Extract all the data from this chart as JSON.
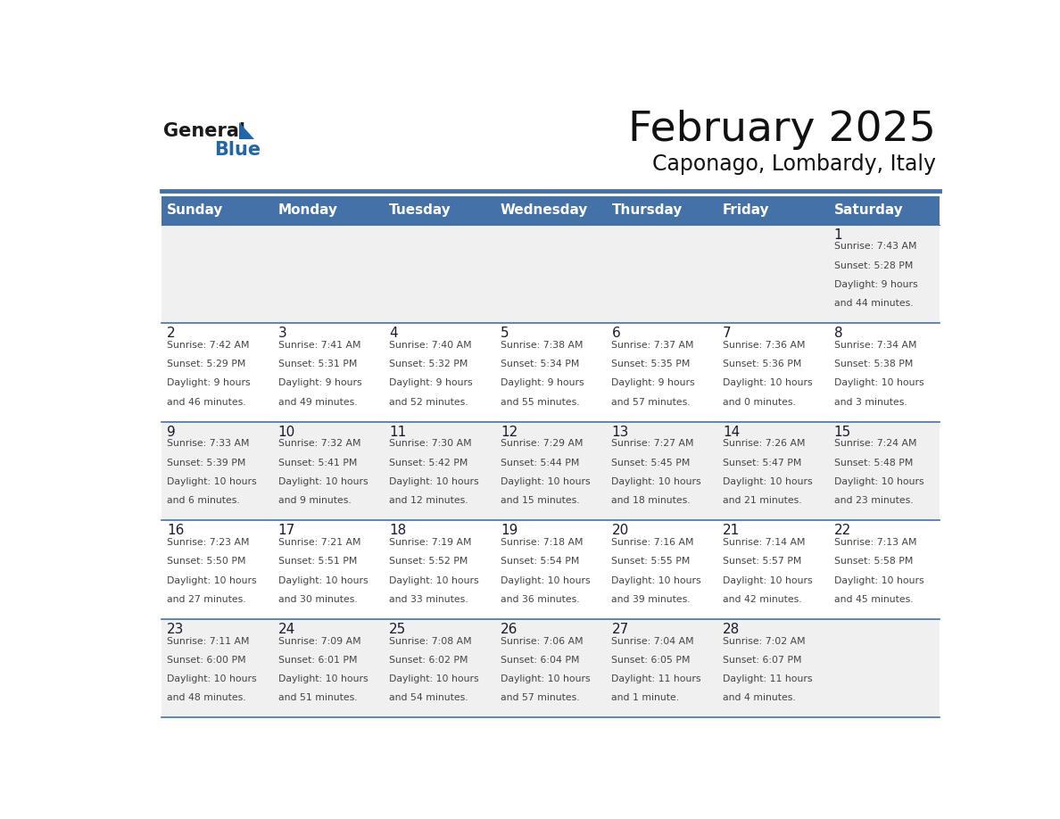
{
  "title": "February 2025",
  "subtitle": "Caponago, Lombardy, Italy",
  "header_bg": "#4472a8",
  "header_text_color": "#ffffff",
  "days_of_week": [
    "Sunday",
    "Monday",
    "Tuesday",
    "Wednesday",
    "Thursday",
    "Friday",
    "Saturday"
  ],
  "row_bg_even": "#f0f0f0",
  "row_bg_odd": "#ffffff",
  "cell_text_color": "#444444",
  "day_num_color": "#1a1a2e",
  "line_color": "#4472a8",
  "general_blue_text": "#2266aa",
  "logo_text_color": "#1a1a1a",
  "weeks": [
    [
      null,
      null,
      null,
      null,
      null,
      null,
      1
    ],
    [
      2,
      3,
      4,
      5,
      6,
      7,
      8
    ],
    [
      9,
      10,
      11,
      12,
      13,
      14,
      15
    ],
    [
      16,
      17,
      18,
      19,
      20,
      21,
      22
    ],
    [
      23,
      24,
      25,
      26,
      27,
      28,
      null
    ]
  ],
  "cell_data": {
    "1": {
      "sunrise": "7:43 AM",
      "sunset": "5:28 PM",
      "daylight": "9 hours",
      "daylight2": "and 44 minutes."
    },
    "2": {
      "sunrise": "7:42 AM",
      "sunset": "5:29 PM",
      "daylight": "9 hours",
      "daylight2": "and 46 minutes."
    },
    "3": {
      "sunrise": "7:41 AM",
      "sunset": "5:31 PM",
      "daylight": "9 hours",
      "daylight2": "and 49 minutes."
    },
    "4": {
      "sunrise": "7:40 AM",
      "sunset": "5:32 PM",
      "daylight": "9 hours",
      "daylight2": "and 52 minutes."
    },
    "5": {
      "sunrise": "7:38 AM",
      "sunset": "5:34 PM",
      "daylight": "9 hours",
      "daylight2": "and 55 minutes."
    },
    "6": {
      "sunrise": "7:37 AM",
      "sunset": "5:35 PM",
      "daylight": "9 hours",
      "daylight2": "and 57 minutes."
    },
    "7": {
      "sunrise": "7:36 AM",
      "sunset": "5:36 PM",
      "daylight": "10 hours",
      "daylight2": "and 0 minutes."
    },
    "8": {
      "sunrise": "7:34 AM",
      "sunset": "5:38 PM",
      "daylight": "10 hours",
      "daylight2": "and 3 minutes."
    },
    "9": {
      "sunrise": "7:33 AM",
      "sunset": "5:39 PM",
      "daylight": "10 hours",
      "daylight2": "and 6 minutes."
    },
    "10": {
      "sunrise": "7:32 AM",
      "sunset": "5:41 PM",
      "daylight": "10 hours",
      "daylight2": "and 9 minutes."
    },
    "11": {
      "sunrise": "7:30 AM",
      "sunset": "5:42 PM",
      "daylight": "10 hours",
      "daylight2": "and 12 minutes."
    },
    "12": {
      "sunrise": "7:29 AM",
      "sunset": "5:44 PM",
      "daylight": "10 hours",
      "daylight2": "and 15 minutes."
    },
    "13": {
      "sunrise": "7:27 AM",
      "sunset": "5:45 PM",
      "daylight": "10 hours",
      "daylight2": "and 18 minutes."
    },
    "14": {
      "sunrise": "7:26 AM",
      "sunset": "5:47 PM",
      "daylight": "10 hours",
      "daylight2": "and 21 minutes."
    },
    "15": {
      "sunrise": "7:24 AM",
      "sunset": "5:48 PM",
      "daylight": "10 hours",
      "daylight2": "and 23 minutes."
    },
    "16": {
      "sunrise": "7:23 AM",
      "sunset": "5:50 PM",
      "daylight": "10 hours",
      "daylight2": "and 27 minutes."
    },
    "17": {
      "sunrise": "7:21 AM",
      "sunset": "5:51 PM",
      "daylight": "10 hours",
      "daylight2": "and 30 minutes."
    },
    "18": {
      "sunrise": "7:19 AM",
      "sunset": "5:52 PM",
      "daylight": "10 hours",
      "daylight2": "and 33 minutes."
    },
    "19": {
      "sunrise": "7:18 AM",
      "sunset": "5:54 PM",
      "daylight": "10 hours",
      "daylight2": "and 36 minutes."
    },
    "20": {
      "sunrise": "7:16 AM",
      "sunset": "5:55 PM",
      "daylight": "10 hours",
      "daylight2": "and 39 minutes."
    },
    "21": {
      "sunrise": "7:14 AM",
      "sunset": "5:57 PM",
      "daylight": "10 hours",
      "daylight2": "and 42 minutes."
    },
    "22": {
      "sunrise": "7:13 AM",
      "sunset": "5:58 PM",
      "daylight": "10 hours",
      "daylight2": "and 45 minutes."
    },
    "23": {
      "sunrise": "7:11 AM",
      "sunset": "6:00 PM",
      "daylight": "10 hours",
      "daylight2": "and 48 minutes."
    },
    "24": {
      "sunrise": "7:09 AM",
      "sunset": "6:01 PM",
      "daylight": "10 hours",
      "daylight2": "and 51 minutes."
    },
    "25": {
      "sunrise": "7:08 AM",
      "sunset": "6:02 PM",
      "daylight": "10 hours",
      "daylight2": "and 54 minutes."
    },
    "26": {
      "sunrise": "7:06 AM",
      "sunset": "6:04 PM",
      "daylight": "10 hours",
      "daylight2": "and 57 minutes."
    },
    "27": {
      "sunrise": "7:04 AM",
      "sunset": "6:05 PM",
      "daylight": "11 hours",
      "daylight2": "and 1 minute."
    },
    "28": {
      "sunrise": "7:02 AM",
      "sunset": "6:07 PM",
      "daylight": "11 hours",
      "daylight2": "and 4 minutes."
    }
  }
}
